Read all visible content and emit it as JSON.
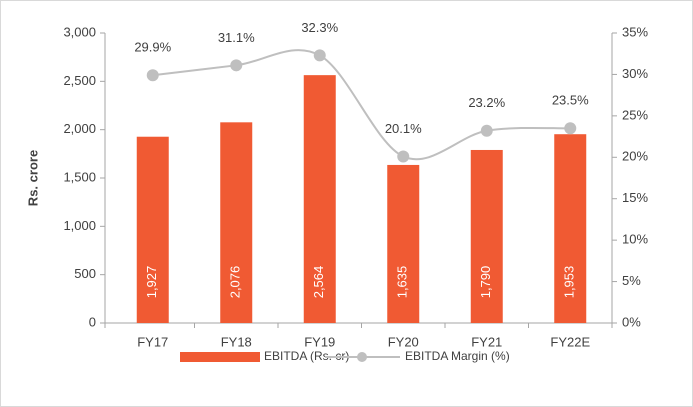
{
  "chart_data": {
    "type": "bar",
    "y_label": "Rs. crore",
    "categories": [
      "FY17",
      "FY18",
      "FY19",
      "FY20",
      "FY21",
      "FY22E"
    ],
    "series": [
      {
        "name": "EBITDA (Rs. cr)",
        "type": "bar",
        "color": "#f05a33",
        "values": [
          1927,
          2076,
          2564,
          1635,
          1790,
          1953
        ],
        "value_labels": [
          "1,927",
          "2,076",
          "2,564",
          "1,635",
          "1,790",
          "1,953"
        ]
      },
      {
        "name": "EBITDA Margin (%)",
        "type": "line",
        "axis": "y2",
        "color": "#bfbfbf",
        "values": [
          29.9,
          31.1,
          32.3,
          20.1,
          23.2,
          23.5
        ],
        "value_labels": [
          "29.9%",
          "31.1%",
          "32.3%",
          "20.1%",
          "23.2%",
          "23.5%"
        ]
      }
    ],
    "ylim": [
      0,
      3000
    ],
    "yticks": [
      0,
      500,
      {
        "value": 1000,
        "label": "1,000"
      },
      {
        "value": 1500,
        "label": "1,500"
      },
      {
        "value": 2000,
        "label": "2,000"
      },
      {
        "value": 2500,
        "label": "2,500"
      },
      {
        "value": 3000,
        "label": "3,000"
      }
    ],
    "y2lim": [
      0,
      35
    ],
    "y2ticks": [
      {
        "value": 0,
        "label": "0%"
      },
      {
        "value": 5,
        "label": "5%"
      },
      {
        "value": 10,
        "label": "10%"
      },
      {
        "value": 15,
        "label": "15%"
      },
      {
        "value": 20,
        "label": "20%"
      },
      {
        "value": 25,
        "label": "25%"
      },
      {
        "value": 30,
        "label": "30%"
      },
      {
        "value": 35,
        "label": "35%"
      }
    ],
    "legend": "bottom"
  }
}
